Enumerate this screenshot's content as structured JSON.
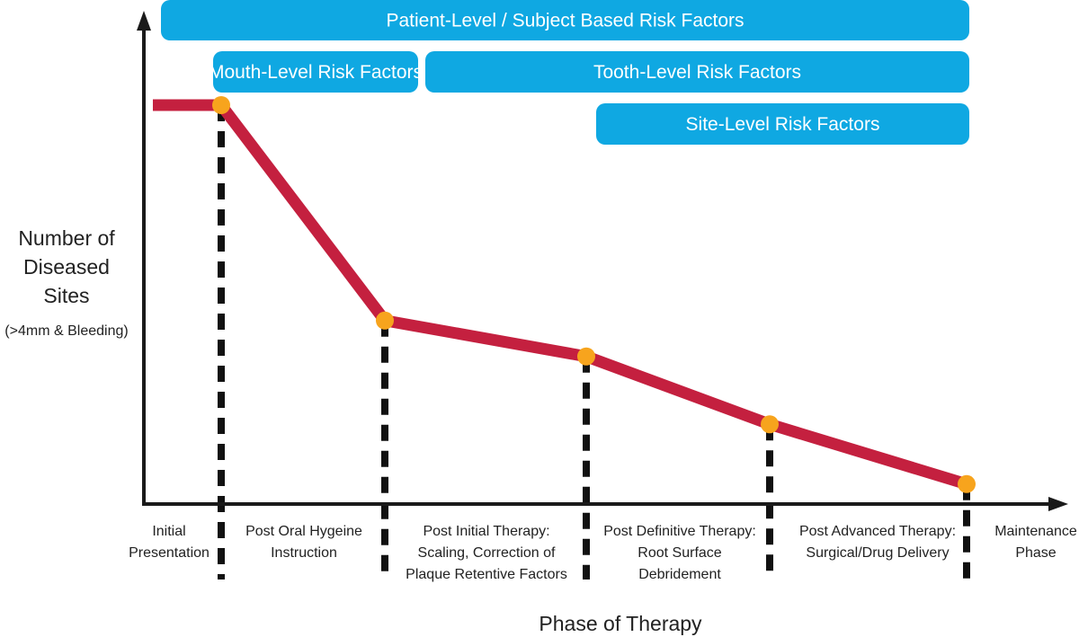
{
  "chart_data": {
    "type": "line",
    "xlabel": "Phase of Therapy",
    "ylabel": [
      "Number of",
      "Diseased",
      "Sites"
    ],
    "ylabel_note": "(>4mm & Bleeding)",
    "categories": [
      [
        "Initial",
        "Presentation"
      ],
      [
        "Post Oral Hygeine",
        "Instruction"
      ],
      [
        "Post Initial Therapy:",
        "Scaling, Correction of",
        "Plaque Retentive Factors"
      ],
      [
        "Post Definitive Therapy:",
        "Root Surface",
        "Debridement"
      ],
      [
        "Post Advanced Therapy:",
        "Surgical/Drug Delivery"
      ],
      [
        "Maintenance",
        "Phase"
      ]
    ],
    "series": [
      {
        "values": [
          100,
          100,
          46,
          37,
          20,
          5
        ]
      }
    ],
    "ylim": [
      0,
      125
    ],
    "bands": [
      {
        "label": "Patient-Level / Subject Based Risk Factors",
        "from": 0,
        "to": 5
      },
      {
        "label": "Mouth-Level Risk Factors",
        "from": 1,
        "to": 2
      },
      {
        "label": "Tooth-Level Risk Factors",
        "from": 2,
        "to": 5
      },
      {
        "label": "Site-Level Risk Factors",
        "from": 3,
        "to": 5
      }
    ],
    "colors": {
      "line": "#c4203f",
      "marker": "#f7a41d",
      "band": "#0fa8e2",
      "axis": "#1a1a1a",
      "divider": "#111111"
    },
    "grid": false,
    "legend": "none"
  }
}
